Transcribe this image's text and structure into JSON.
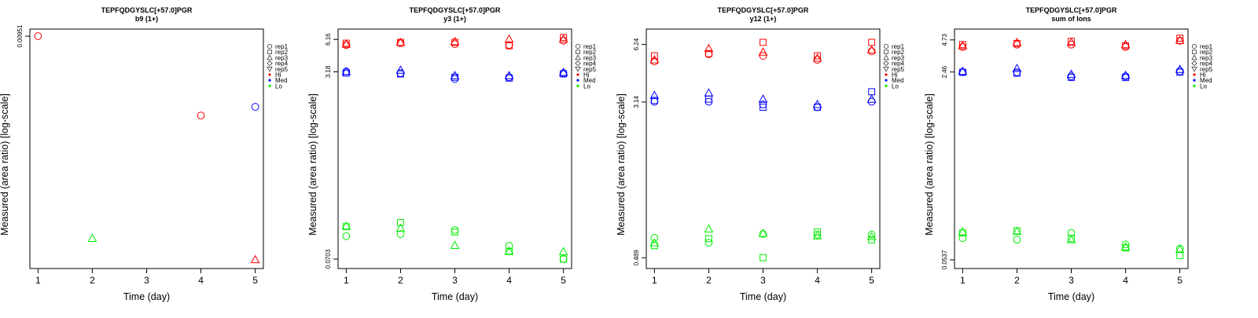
{
  "legend": {
    "replicates": [
      {
        "label": "rep1",
        "shape": "circle"
      },
      {
        "label": "rep2",
        "shape": "square"
      },
      {
        "label": "rep3",
        "shape": "triangle"
      },
      {
        "label": "rep4",
        "shape": "diamond"
      },
      {
        "label": "rep5",
        "shape": "triangle-down"
      }
    ],
    "levels": [
      {
        "label": "Hi",
        "color": "#ff0000"
      },
      {
        "label": "Med",
        "color": "#0000ff"
      },
      {
        "label": "Lo",
        "color": "#00ee00"
      }
    ]
  },
  "chart_data": [
    {
      "type": "scatter",
      "title": "TEPFQDGYSLC[+57.0]PGR",
      "subtitle": "b9 (1+)",
      "xlabel": "Time (day)",
      "ylabel": "Measured (area ratio) [log-scale]",
      "log_y": true,
      "x_ticks": [
        1,
        2,
        3,
        4,
        5
      ],
      "xlim": [
        0.85,
        5.15
      ],
      "y_ticks": [
        0.00951
      ],
      "ylim": [
        4.6e-05,
        0.0112
      ],
      "points": [
        {
          "x": 1,
          "y": 0.00951,
          "level": "Hi",
          "rep": "rep1"
        },
        {
          "x": 4,
          "y": 0.00154,
          "level": "Hi",
          "rep": "rep1"
        },
        {
          "x": 5,
          "y": 5.65e-05,
          "level": "Hi",
          "rep": "rep3"
        },
        {
          "x": 5,
          "y": 0.00188,
          "level": "Med",
          "rep": "rep1"
        },
        {
          "x": 2,
          "y": 9.2e-05,
          "level": "Lo",
          "rep": "rep3"
        }
      ]
    },
    {
      "type": "scatter",
      "title": "TEPFQDGYSLC[+57.0]PGR",
      "subtitle": "y3 (1+)",
      "xlabel": "Time (day)",
      "ylabel": "Measured (area ratio) [log-scale]",
      "log_y": true,
      "x_ticks": [
        1,
        2,
        3,
        4,
        5
      ],
      "xlim": [
        0.85,
        5.15
      ],
      "y_ticks": [
        0.0703,
        3.18,
        6.16
      ],
      "ylim": [
        0.058,
        7.6
      ],
      "points": [
        {
          "x": 1,
          "y": 5.5,
          "level": "Hi",
          "rep": "rep1"
        },
        {
          "x": 1,
          "y": 5.7,
          "level": "Hi",
          "rep": "rep2"
        },
        {
          "x": 1,
          "y": 5.6,
          "level": "Hi",
          "rep": "rep3"
        },
        {
          "x": 2,
          "y": 5.7,
          "level": "Hi",
          "rep": "rep1"
        },
        {
          "x": 2,
          "y": 5.8,
          "level": "Hi",
          "rep": "rep2"
        },
        {
          "x": 2,
          "y": 5.8,
          "level": "Hi",
          "rep": "rep3"
        },
        {
          "x": 3,
          "y": 5.6,
          "level": "Hi",
          "rep": "rep1"
        },
        {
          "x": 3,
          "y": 5.8,
          "level": "Hi",
          "rep": "rep2"
        },
        {
          "x": 3,
          "y": 5.9,
          "level": "Hi",
          "rep": "rep3"
        },
        {
          "x": 4,
          "y": 5.5,
          "level": "Hi",
          "rep": "rep1"
        },
        {
          "x": 4,
          "y": 5.4,
          "level": "Hi",
          "rep": "rep2"
        },
        {
          "x": 4,
          "y": 6.2,
          "level": "Hi",
          "rep": "rep3"
        },
        {
          "x": 5,
          "y": 6.0,
          "level": "Hi",
          "rep": "rep1"
        },
        {
          "x": 5,
          "y": 6.4,
          "level": "Hi",
          "rep": "rep2"
        },
        {
          "x": 5,
          "y": 6.2,
          "level": "Hi",
          "rep": "rep3"
        },
        {
          "x": 1,
          "y": 3.2,
          "level": "Med",
          "rep": "rep1"
        },
        {
          "x": 1,
          "y": 3.1,
          "level": "Med",
          "rep": "rep2"
        },
        {
          "x": 1,
          "y": 3.2,
          "level": "Med",
          "rep": "rep3"
        },
        {
          "x": 2,
          "y": 3.1,
          "level": "Med",
          "rep": "rep1"
        },
        {
          "x": 2,
          "y": 3.05,
          "level": "Med",
          "rep": "rep2"
        },
        {
          "x": 2,
          "y": 3.3,
          "level": "Med",
          "rep": "rep3"
        },
        {
          "x": 3,
          "y": 2.75,
          "level": "Med",
          "rep": "rep1"
        },
        {
          "x": 3,
          "y": 2.85,
          "level": "Med",
          "rep": "rep2"
        },
        {
          "x": 3,
          "y": 2.95,
          "level": "Med",
          "rep": "rep3"
        },
        {
          "x": 4,
          "y": 2.85,
          "level": "Med",
          "rep": "rep1"
        },
        {
          "x": 4,
          "y": 2.8,
          "level": "Med",
          "rep": "rep2"
        },
        {
          "x": 4,
          "y": 2.95,
          "level": "Med",
          "rep": "rep3"
        },
        {
          "x": 5,
          "y": 3.1,
          "level": "Med",
          "rep": "rep1"
        },
        {
          "x": 5,
          "y": 3.05,
          "level": "Med",
          "rep": "rep2"
        },
        {
          "x": 5,
          "y": 3.15,
          "level": "Med",
          "rep": "rep3"
        },
        {
          "x": 1,
          "y": 0.112,
          "level": "Lo",
          "rep": "rep1"
        },
        {
          "x": 1,
          "y": 0.136,
          "level": "Lo",
          "rep": "rep2"
        },
        {
          "x": 1,
          "y": 0.138,
          "level": "Lo",
          "rep": "rep3"
        },
        {
          "x": 2,
          "y": 0.117,
          "level": "Lo",
          "rep": "rep1"
        },
        {
          "x": 2,
          "y": 0.148,
          "level": "Lo",
          "rep": "rep2"
        },
        {
          "x": 2,
          "y": 0.132,
          "level": "Lo",
          "rep": "rep3"
        },
        {
          "x": 3,
          "y": 0.127,
          "level": "Lo",
          "rep": "rep1"
        },
        {
          "x": 3,
          "y": 0.122,
          "level": "Lo",
          "rep": "rep2"
        },
        {
          "x": 3,
          "y": 0.093,
          "level": "Lo",
          "rep": "rep3"
        },
        {
          "x": 4,
          "y": 0.092,
          "level": "Lo",
          "rep": "rep1"
        },
        {
          "x": 4,
          "y": 0.082,
          "level": "Lo",
          "rep": "rep2"
        },
        {
          "x": 4,
          "y": 0.083,
          "level": "Lo",
          "rep": "rep3"
        },
        {
          "x": 5,
          "y": 0.0705,
          "level": "Lo",
          "rep": "rep1"
        },
        {
          "x": 5,
          "y": 0.0703,
          "level": "Lo",
          "rep": "rep2"
        },
        {
          "x": 5,
          "y": 0.082,
          "level": "Lo",
          "rep": "rep3"
        }
      ]
    },
    {
      "type": "scatter",
      "title": "TEPFQDGYSLC[+57.0]PGR",
      "subtitle": "y12 (1+)",
      "xlabel": "Time (day)",
      "ylabel": "Measured (area ratio) [log-scale]",
      "log_y": true,
      "x_ticks": [
        1,
        2,
        3,
        4,
        5
      ],
      "xlim": [
        0.85,
        5.15
      ],
      "y_ticks": [
        0.489,
        3.14,
        6.24
      ],
      "ylim": [
        0.43,
        7.5
      ],
      "points": [
        {
          "x": 1,
          "y": 5.1,
          "level": "Hi",
          "rep": "rep1"
        },
        {
          "x": 1,
          "y": 5.45,
          "level": "Hi",
          "rep": "rep2"
        },
        {
          "x": 1,
          "y": 5.2,
          "level": "Hi",
          "rep": "rep3"
        },
        {
          "x": 2,
          "y": 5.55,
          "level": "Hi",
          "rep": "rep1"
        },
        {
          "x": 2,
          "y": 5.6,
          "level": "Hi",
          "rep": "rep2"
        },
        {
          "x": 2,
          "y": 5.95,
          "level": "Hi",
          "rep": "rep3"
        },
        {
          "x": 3,
          "y": 5.45,
          "level": "Hi",
          "rep": "rep1"
        },
        {
          "x": 3,
          "y": 6.4,
          "level": "Hi",
          "rep": "rep2"
        },
        {
          "x": 3,
          "y": 5.7,
          "level": "Hi",
          "rep": "rep3"
        },
        {
          "x": 4,
          "y": 5.2,
          "level": "Hi",
          "rep": "rep1"
        },
        {
          "x": 4,
          "y": 5.45,
          "level": "Hi",
          "rep": "rep2"
        },
        {
          "x": 4,
          "y": 5.3,
          "level": "Hi",
          "rep": "rep3"
        },
        {
          "x": 5,
          "y": 5.75,
          "level": "Hi",
          "rep": "rep1"
        },
        {
          "x": 5,
          "y": 6.4,
          "level": "Hi",
          "rep": "rep2"
        },
        {
          "x": 5,
          "y": 5.85,
          "level": "Hi",
          "rep": "rep3"
        },
        {
          "x": 1,
          "y": 3.15,
          "level": "Med",
          "rep": "rep1"
        },
        {
          "x": 1,
          "y": 3.2,
          "level": "Med",
          "rep": "rep2"
        },
        {
          "x": 1,
          "y": 3.4,
          "level": "Med",
          "rep": "rep3"
        },
        {
          "x": 2,
          "y": 3.15,
          "level": "Med",
          "rep": "rep1"
        },
        {
          "x": 2,
          "y": 3.25,
          "level": "Med",
          "rep": "rep2"
        },
        {
          "x": 2,
          "y": 3.5,
          "level": "Med",
          "rep": "rep3"
        },
        {
          "x": 3,
          "y": 3.05,
          "level": "Med",
          "rep": "rep1"
        },
        {
          "x": 3,
          "y": 2.95,
          "level": "Med",
          "rep": "rep2"
        },
        {
          "x": 3,
          "y": 3.25,
          "level": "Med",
          "rep": "rep3"
        },
        {
          "x": 4,
          "y": 2.95,
          "level": "Med",
          "rep": "rep1"
        },
        {
          "x": 4,
          "y": 2.95,
          "level": "Med",
          "rep": "rep2"
        },
        {
          "x": 4,
          "y": 3.05,
          "level": "Med",
          "rep": "rep3"
        },
        {
          "x": 5,
          "y": 3.15,
          "level": "Med",
          "rep": "rep1"
        },
        {
          "x": 5,
          "y": 3.55,
          "level": "Med",
          "rep": "rep2"
        },
        {
          "x": 5,
          "y": 3.25,
          "level": "Med",
          "rep": "rep3"
        },
        {
          "x": 1,
          "y": 0.62,
          "level": "Lo",
          "rep": "rep1"
        },
        {
          "x": 1,
          "y": 0.565,
          "level": "Lo",
          "rep": "rep2"
        },
        {
          "x": 1,
          "y": 0.585,
          "level": "Lo",
          "rep": "rep3"
        },
        {
          "x": 2,
          "y": 0.585,
          "level": "Lo",
          "rep": "rep1"
        },
        {
          "x": 2,
          "y": 0.615,
          "level": "Lo",
          "rep": "rep2"
        },
        {
          "x": 2,
          "y": 0.69,
          "level": "Lo",
          "rep": "rep3"
        },
        {
          "x": 3,
          "y": 0.65,
          "level": "Lo",
          "rep": "rep1"
        },
        {
          "x": 3,
          "y": 0.49,
          "level": "Lo",
          "rep": "rep2"
        },
        {
          "x": 3,
          "y": 0.655,
          "level": "Lo",
          "rep": "rep3"
        },
        {
          "x": 4,
          "y": 0.645,
          "level": "Lo",
          "rep": "rep1"
        },
        {
          "x": 4,
          "y": 0.665,
          "level": "Lo",
          "rep": "rep2"
        },
        {
          "x": 4,
          "y": 0.635,
          "level": "Lo",
          "rep": "rep3"
        },
        {
          "x": 5,
          "y": 0.645,
          "level": "Lo",
          "rep": "rep1"
        },
        {
          "x": 5,
          "y": 0.605,
          "level": "Lo",
          "rep": "rep2"
        },
        {
          "x": 5,
          "y": 0.63,
          "level": "Lo",
          "rep": "rep3"
        }
      ]
    },
    {
      "type": "scatter",
      "title": "TEPFQDGYSLC[+57.0]PGR",
      "subtitle": "sum of Ions",
      "xlabel": "Time (day)",
      "ylabel": "Measured (area ratio) [log-scale]",
      "log_y": true,
      "x_ticks": [
        1,
        2,
        3,
        4,
        5
      ],
      "xlim": [
        0.85,
        5.15
      ],
      "y_ticks": [
        0.0537,
        2.46,
        4.73
      ],
      "ylim": [
        0.045,
        5.9
      ],
      "points": [
        {
          "x": 1,
          "y": 4.1,
          "level": "Hi",
          "rep": "rep1"
        },
        {
          "x": 1,
          "y": 4.3,
          "level": "Hi",
          "rep": "rep2"
        },
        {
          "x": 1,
          "y": 4.2,
          "level": "Hi",
          "rep": "rep3"
        },
        {
          "x": 2,
          "y": 4.3,
          "level": "Hi",
          "rep": "rep1"
        },
        {
          "x": 2,
          "y": 4.4,
          "level": "Hi",
          "rep": "rep2"
        },
        {
          "x": 2,
          "y": 4.5,
          "level": "Hi",
          "rep": "rep3"
        },
        {
          "x": 3,
          "y": 4.3,
          "level": "Hi",
          "rep": "rep1"
        },
        {
          "x": 3,
          "y": 4.6,
          "level": "Hi",
          "rep": "rep2"
        },
        {
          "x": 3,
          "y": 4.5,
          "level": "Hi",
          "rep": "rep3"
        },
        {
          "x": 4,
          "y": 4.1,
          "level": "Hi",
          "rep": "rep1"
        },
        {
          "x": 4,
          "y": 4.2,
          "level": "Hi",
          "rep": "rep2"
        },
        {
          "x": 4,
          "y": 4.3,
          "level": "Hi",
          "rep": "rep3"
        },
        {
          "x": 5,
          "y": 4.65,
          "level": "Hi",
          "rep": "rep1"
        },
        {
          "x": 5,
          "y": 4.9,
          "level": "Hi",
          "rep": "rep2"
        },
        {
          "x": 5,
          "y": 4.7,
          "level": "Hi",
          "rep": "rep3"
        },
        {
          "x": 1,
          "y": 2.45,
          "level": "Med",
          "rep": "rep1"
        },
        {
          "x": 1,
          "y": 2.45,
          "level": "Med",
          "rep": "rep2"
        },
        {
          "x": 1,
          "y": 2.5,
          "level": "Med",
          "rep": "rep3"
        },
        {
          "x": 2,
          "y": 2.45,
          "level": "Med",
          "rep": "rep1"
        },
        {
          "x": 2,
          "y": 2.4,
          "level": "Med",
          "rep": "rep2"
        },
        {
          "x": 2,
          "y": 2.65,
          "level": "Med",
          "rep": "rep3"
        },
        {
          "x": 3,
          "y": 2.25,
          "level": "Med",
          "rep": "rep1"
        },
        {
          "x": 3,
          "y": 2.2,
          "level": "Med",
          "rep": "rep2"
        },
        {
          "x": 3,
          "y": 2.35,
          "level": "Med",
          "rep": "rep3"
        },
        {
          "x": 4,
          "y": 2.25,
          "level": "Med",
          "rep": "rep1"
        },
        {
          "x": 4,
          "y": 2.2,
          "level": "Med",
          "rep": "rep2"
        },
        {
          "x": 4,
          "y": 2.3,
          "level": "Med",
          "rep": "rep3"
        },
        {
          "x": 5,
          "y": 2.5,
          "level": "Med",
          "rep": "rep1"
        },
        {
          "x": 5,
          "y": 2.45,
          "level": "Med",
          "rep": "rep2"
        },
        {
          "x": 5,
          "y": 2.6,
          "level": "Med",
          "rep": "rep3"
        },
        {
          "x": 1,
          "y": 0.0835,
          "level": "Lo",
          "rep": "rep1"
        },
        {
          "x": 1,
          "y": 0.093,
          "level": "Lo",
          "rep": "rep2"
        },
        {
          "x": 1,
          "y": 0.095,
          "level": "Lo",
          "rep": "rep3"
        },
        {
          "x": 2,
          "y": 0.081,
          "level": "Lo",
          "rep": "rep1"
        },
        {
          "x": 2,
          "y": 0.097,
          "level": "Lo",
          "rep": "rep2"
        },
        {
          "x": 2,
          "y": 0.096,
          "level": "Lo",
          "rep": "rep3"
        },
        {
          "x": 3,
          "y": 0.093,
          "level": "Lo",
          "rep": "rep1"
        },
        {
          "x": 3,
          "y": 0.083,
          "level": "Lo",
          "rep": "rep2"
        },
        {
          "x": 3,
          "y": 0.081,
          "level": "Lo",
          "rep": "rep3"
        },
        {
          "x": 4,
          "y": 0.0735,
          "level": "Lo",
          "rep": "rep1"
        },
        {
          "x": 4,
          "y": 0.0685,
          "level": "Lo",
          "rep": "rep2"
        },
        {
          "x": 4,
          "y": 0.07,
          "level": "Lo",
          "rep": "rep3"
        },
        {
          "x": 5,
          "y": 0.0675,
          "level": "Lo",
          "rep": "rep1"
        },
        {
          "x": 5,
          "y": 0.0585,
          "level": "Lo",
          "rep": "rep2"
        },
        {
          "x": 5,
          "y": 0.0665,
          "level": "Lo",
          "rep": "rep3"
        }
      ]
    }
  ]
}
